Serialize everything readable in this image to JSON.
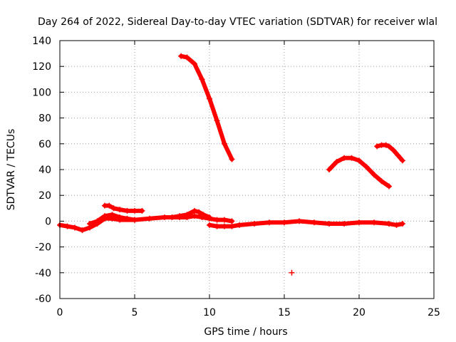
{
  "chart_data": {
    "type": "scatter",
    "title": "Day 264 of 2022, Sidereal Day-to-day VTEC variation (SDTVAR) for receiver wlal",
    "xlabel": "GPS time / hours",
    "ylabel": "SDTVAR / TECUs",
    "xlim": [
      0,
      25
    ],
    "ylim": [
      -60,
      140
    ],
    "xticks": [
      0,
      5,
      10,
      15,
      20,
      25
    ],
    "yticks": [
      -60,
      -40,
      -20,
      0,
      20,
      40,
      60,
      80,
      100,
      120,
      140
    ],
    "grid": true,
    "legend": "none",
    "marker": "+",
    "color": "#ff0000",
    "series": [
      {
        "name": "arc-baseline-1",
        "x": [
          0,
          0.5,
          1.0,
          1.5,
          2.0,
          2.5,
          3.0,
          3.5,
          4.0,
          5.0,
          6.0,
          7.0,
          8.0,
          8.5,
          9.0,
          9.5,
          10.0,
          10.5,
          11.0,
          11.5
        ],
        "y": [
          -3,
          -4,
          -5,
          -7,
          -5,
          -2,
          2,
          2,
          1,
          1,
          2,
          3,
          3,
          3,
          4,
          3,
          2,
          1,
          1,
          0
        ]
      },
      {
        "name": "arc-baseline-2",
        "x": [
          10.0,
          10.5,
          11.0,
          11.5,
          12.0,
          13.0,
          14.0,
          15.0,
          16.0,
          17.0,
          18.0,
          19.0,
          20.0,
          21.0,
          22.0,
          22.5,
          22.9
        ],
        "y": [
          -3,
          -4,
          -4,
          -4,
          -3,
          -2,
          -1,
          -1,
          0,
          -1,
          -2,
          -2,
          -1,
          -1,
          -2,
          -3,
          -2
        ]
      },
      {
        "name": "arc-bump-3h",
        "x": [
          3.0,
          3.3,
          3.6,
          4.0,
          4.5,
          5.0,
          5.5
        ],
        "y": [
          12,
          12,
          10,
          9,
          8,
          8,
          8
        ]
      },
      {
        "name": "arc-bump-2h",
        "x": [
          2.0,
          2.5,
          3.0,
          3.5,
          4.0,
          4.5,
          5.0
        ],
        "y": [
          -2,
          0,
          4,
          5,
          3,
          2,
          1
        ]
      },
      {
        "name": "arc-bump-9h",
        "x": [
          7.5,
          8.0,
          8.5,
          9.0,
          9.3,
          9.6,
          10.0
        ],
        "y": [
          3,
          4,
          5,
          8,
          7,
          5,
          3
        ]
      },
      {
        "name": "arc-falling",
        "x": [
          8.1,
          8.5,
          9.0,
          9.5,
          10.0,
          10.5,
          11.0,
          11.5
        ],
        "y": [
          128,
          127,
          122,
          110,
          95,
          78,
          60,
          48
        ]
      },
      {
        "name": "arc-hump-19h",
        "x": [
          18.0,
          18.5,
          19.0,
          19.5,
          20.0,
          20.5,
          21.0,
          21.5,
          22.0
        ],
        "y": [
          40,
          46,
          49,
          49,
          47,
          42,
          36,
          31,
          27
        ]
      },
      {
        "name": "arc-hump-22h",
        "x": [
          21.2,
          21.5,
          21.8,
          22.0,
          22.3,
          22.6,
          22.9
        ],
        "y": [
          58,
          59,
          59,
          58,
          55,
          51,
          47
        ]
      },
      {
        "name": "outlier",
        "x": [
          15.5
        ],
        "y": [
          -40
        ]
      }
    ]
  }
}
